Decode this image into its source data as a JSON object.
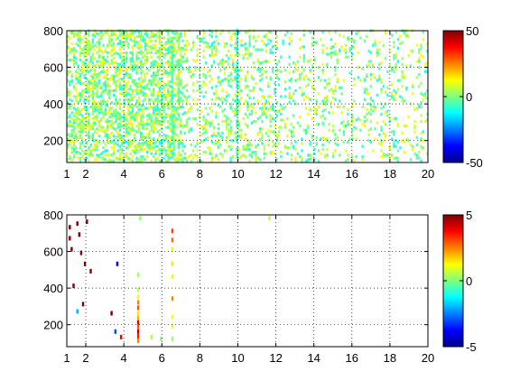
{
  "chart_data": [
    {
      "type": "heatmap",
      "title": "",
      "xlabel": "",
      "ylabel": "",
      "xlim": [
        1,
        20
      ],
      "ylim": [
        80,
        800
      ],
      "xticks": [
        1,
        2,
        4,
        6,
        8,
        10,
        12,
        14,
        16,
        18,
        20
      ],
      "yticks": [
        200,
        400,
        600,
        800
      ],
      "grid": true,
      "colorbar": {
        "colormap": "jet",
        "range": [
          -50,
          50
        ],
        "ticks": [
          -50,
          0,
          50
        ]
      },
      "description_of_values": "sparse scattered cells, mostly near 0 (cyan/green/yellow), dense for x<7 and sparser for larger x",
      "highlight_columns": [
        {
          "x": 6.5,
          "y_from": 100,
          "y_to": 700,
          "value": -5
        },
        {
          "x": 9.9,
          "y_from": 100,
          "y_to": 800,
          "value": -8
        }
      ]
    },
    {
      "type": "heatmap",
      "title": "",
      "xlabel": "",
      "ylabel": "",
      "xlim": [
        1,
        20
      ],
      "ylim": [
        80,
        800
      ],
      "xticks": [
        1,
        2,
        4,
        6,
        8,
        10,
        12,
        14,
        16,
        18,
        20
      ],
      "yticks": [
        200,
        400,
        600,
        800
      ],
      "grid": true,
      "colorbar": {
        "colormap": "jet",
        "range": [
          -5,
          5
        ],
        "ticks": [
          -5,
          0,
          5
        ]
      },
      "points": [
        {
          "x": 4.7,
          "y": 100,
          "value": 2.5
        },
        {
          "x": 4.7,
          "y": 125,
          "value": 3.5
        },
        {
          "x": 4.7,
          "y": 150,
          "value": 4.5
        },
        {
          "x": 4.7,
          "y": 175,
          "value": 3.0
        },
        {
          "x": 4.7,
          "y": 200,
          "value": 4.0
        },
        {
          "x": 4.7,
          "y": 225,
          "value": 2.0
        },
        {
          "x": 4.7,
          "y": 250,
          "value": 1.5
        },
        {
          "x": 4.7,
          "y": 280,
          "value": 3.0
        },
        {
          "x": 4.7,
          "y": 310,
          "value": 2.5
        },
        {
          "x": 4.7,
          "y": 340,
          "value": 1.0
        },
        {
          "x": 4.7,
          "y": 380,
          "value": 0.5
        },
        {
          "x": 4.7,
          "y": 460,
          "value": 0.3
        },
        {
          "x": 6.5,
          "y": 110,
          "value": 0.2
        },
        {
          "x": 6.5,
          "y": 180,
          "value": 0.8
        },
        {
          "x": 6.5,
          "y": 230,
          "value": 1.2
        },
        {
          "x": 6.5,
          "y": 330,
          "value": 2.5
        },
        {
          "x": 6.5,
          "y": 450,
          "value": 1.0
        },
        {
          "x": 6.5,
          "y": 520,
          "value": 1.5
        },
        {
          "x": 6.5,
          "y": 600,
          "value": 1.0
        },
        {
          "x": 6.5,
          "y": 650,
          "value": 2.8
        },
        {
          "x": 6.5,
          "y": 700,
          "value": 3.2
        },
        {
          "x": 1.1,
          "y": 720,
          "value": 5.0
        },
        {
          "x": 1.1,
          "y": 660,
          "value": 5.0
        },
        {
          "x": 1.2,
          "y": 600,
          "value": 5.0
        },
        {
          "x": 1.5,
          "y": 740,
          "value": 5.0
        },
        {
          "x": 1.6,
          "y": 680,
          "value": 5.0
        },
        {
          "x": 1.7,
          "y": 580,
          "value": 5.0
        },
        {
          "x": 1.9,
          "y": 520,
          "value": 5.0
        },
        {
          "x": 2.0,
          "y": 750,
          "value": 5.0
        },
        {
          "x": 1.8,
          "y": 300,
          "value": 5.0
        },
        {
          "x": 1.5,
          "y": 260,
          "value": -2.0
        },
        {
          "x": 2.2,
          "y": 480,
          "value": 5.0
        },
        {
          "x": 3.3,
          "y": 250,
          "value": 5.0
        },
        {
          "x": 3.5,
          "y": 150,
          "value": -3.0
        },
        {
          "x": 3.8,
          "y": 120,
          "value": 4.0
        },
        {
          "x": 3.6,
          "y": 520,
          "value": -4.0
        },
        {
          "x": 1.3,
          "y": 400,
          "value": 5.0
        },
        {
          "x": 5.4,
          "y": 120,
          "value": 0.5
        },
        {
          "x": 5.9,
          "y": 110,
          "value": 0.0
        },
        {
          "x": 4.8,
          "y": 770,
          "value": 0.3
        },
        {
          "x": 11.6,
          "y": 770,
          "value": 0.5
        }
      ]
    }
  ]
}
